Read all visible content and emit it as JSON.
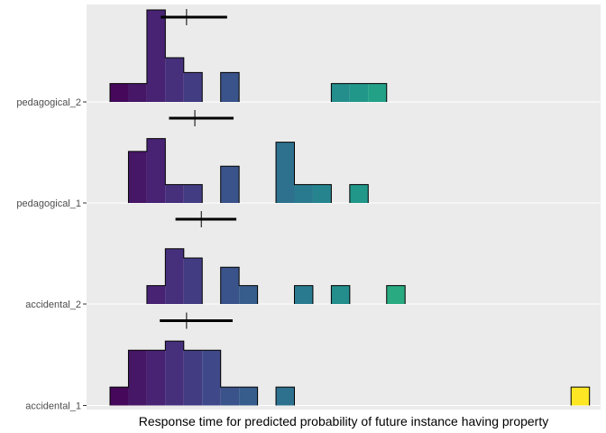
{
  "chart_data": {
    "type": "ridgeline-histogram",
    "title": "",
    "xlabel": "Response time for predicted probability of future instance having property",
    "ylabel": "",
    "bin_width": 1,
    "x_range": [
      -1,
      26
    ],
    "panel_color": "#ebebeb",
    "grid_color": "#ffffff",
    "outline_color": "#000000",
    "groups": [
      {
        "name": "accidental_1",
        "heights": [
          1,
          3,
          3,
          3.5,
          3,
          3,
          1,
          1,
          0,
          1,
          0,
          0,
          0,
          0,
          0,
          0,
          0,
          0,
          0,
          0,
          0,
          0,
          0,
          0,
          0,
          1
        ],
        "mean": 4.15,
        "interval": [
          2.7,
          6.65
        ]
      },
      {
        "name": "accidental_2",
        "heights": [
          0,
          0,
          1,
          3,
          2.5,
          0,
          2,
          1,
          0,
          0,
          1,
          0,
          1,
          0,
          0,
          1,
          0,
          0,
          0,
          0,
          0,
          0,
          0,
          0,
          0,
          0
        ],
        "mean": 4.95,
        "interval": [
          3.55,
          6.85
        ]
      },
      {
        "name": "pedagogical_1",
        "heights": [
          0,
          2.8,
          3.5,
          1,
          1,
          0,
          2,
          0,
          0,
          3.3,
          1,
          1,
          0,
          1,
          0,
          0,
          0,
          0,
          0,
          0,
          0,
          0,
          0,
          0,
          0,
          0
        ],
        "mean": 4.6,
        "interval": [
          3.2,
          6.7
        ]
      },
      {
        "name": "pedagogical_2",
        "heights": [
          1,
          1,
          5,
          2.4,
          1.6,
          0,
          1.6,
          0,
          0,
          0,
          0,
          0,
          1,
          1,
          1,
          0,
          0,
          0,
          0,
          0,
          0,
          0,
          0,
          0,
          0,
          0
        ],
        "mean": 4.15,
        "interval": [
          2.75,
          6.35
        ]
      }
    ]
  }
}
